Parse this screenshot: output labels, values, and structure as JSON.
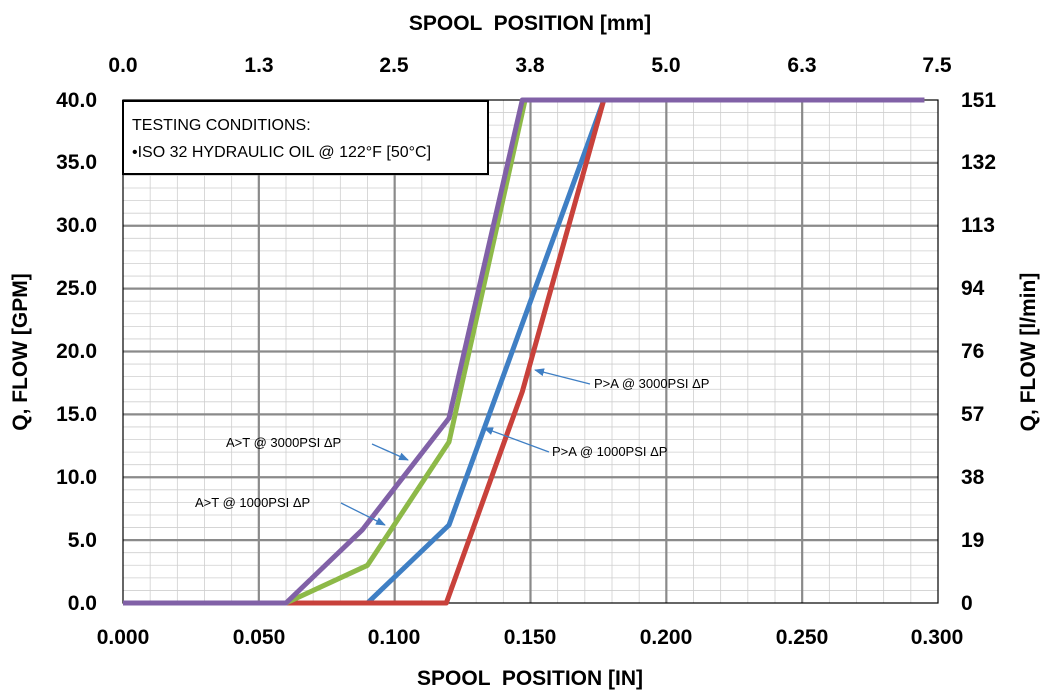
{
  "chart_data": {
    "type": "line",
    "top_axis_label": "SPOOL  POSITION [mm]",
    "top_ticks": [
      "0.0",
      "1.3",
      "2.5",
      "3.8",
      "5.0",
      "6.3",
      "7.5"
    ],
    "xlabel": "SPOOL  POSITION [IN]",
    "x_ticks": [
      "0.000",
      "0.050",
      "0.100",
      "0.150",
      "0.200",
      "0.250",
      "0.300"
    ],
    "xlim": [
      0,
      0.3
    ],
    "ylabel": "Q, FLOW [GPM]",
    "y_ticks": [
      "0.0",
      "5.0",
      "10.0",
      "15.0",
      "20.0",
      "25.0",
      "30.0",
      "35.0",
      "40.0"
    ],
    "ylim": [
      0,
      40
    ],
    "right_axis_label": "Q, FLOW [l/min]",
    "right_ticks": [
      "0",
      "19",
      "38",
      "57",
      "76",
      "94",
      "113",
      "132",
      "151"
    ],
    "grid": true,
    "minor_x_step": 0.01,
    "minor_y_step": 1,
    "series": [
      {
        "name": "A>T @ 1000PSI ΔP",
        "color": "#8DB948",
        "x": [
          0,
          0.06,
          0.09,
          0.12,
          0.148,
          0.295
        ],
        "y": [
          0,
          0,
          3,
          12.8,
          40,
          40
        ]
      },
      {
        "name": "P>A @ 1000PSI ΔP",
        "color": "#3F7FC4",
        "x": [
          0,
          0.09,
          0.12,
          0.177,
          0.295
        ],
        "y": [
          0,
          0,
          6.2,
          40,
          40
        ]
      },
      {
        "name": "P>A @ 3000PSI ΔP",
        "color": "#C8413B",
        "x": [
          0,
          0.119,
          0.147,
          0.177,
          0.295
        ],
        "y": [
          0,
          0,
          16.8,
          40,
          40
        ]
      },
      {
        "name": "A>T @ 3000PSI ΔP",
        "color": "#8161A7",
        "x": [
          0,
          0.06,
          0.088,
          0.12,
          0.147,
          0.295
        ],
        "y": [
          0,
          0,
          5.8,
          14.7,
          40,
          40
        ]
      }
    ],
    "annotations": [
      {
        "text": "A>T @ 3000PSI ΔP",
        "target": [
          0.105,
          11.3
        ]
      },
      {
        "text": "A>T @ 1000PSI ΔP",
        "target": [
          0.097,
          6.1
        ]
      },
      {
        "text": "P>A @ 1000PSI ΔP",
        "target": [
          0.133,
          13.7
        ]
      },
      {
        "text": "P>A @ 3000PSI ΔP",
        "target": [
          0.153,
          18.7
        ]
      }
    ],
    "legend_box": {
      "title": "TESTING CONDITIONS:",
      "line": "•ISO 32 HYDRAULIC OIL @ 122°F [50°C]",
      "placement": "top-left"
    }
  }
}
